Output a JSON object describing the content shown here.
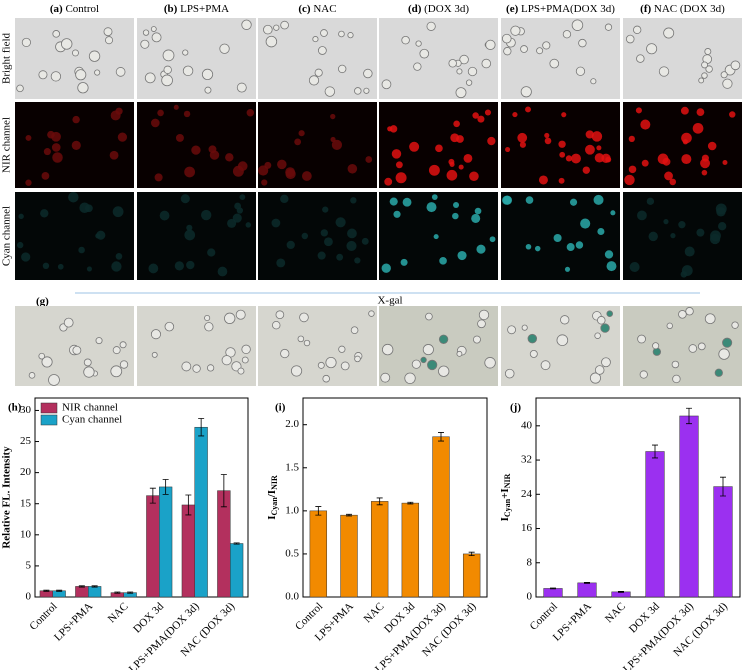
{
  "panels": {
    "columns": [
      {
        "letter": "(a)",
        "name": "Control"
      },
      {
        "letter": "(b)",
        "name": "LPS+PMA"
      },
      {
        "letter": "(c)",
        "name": "NAC"
      },
      {
        "letter": "(d)",
        "name": "(DOX 3d)"
      },
      {
        "letter": "(e)",
        "name": "LPS+PMA(DOX 3d)"
      },
      {
        "letter": "(f)",
        "name": "NAC (DOX 3d)"
      }
    ],
    "rows": [
      "Bright field",
      "NIR channel",
      "Cyan channel"
    ],
    "g_label": "(g)",
    "g_title": "X-gal"
  },
  "chart_data": [
    {
      "type": "grouped_bar",
      "panel_label": "(h)",
      "y_label": "Relative FL. Intensity",
      "categories": [
        "Control",
        "LPS+PMA",
        "NAC",
        "DOX 3d",
        "LPS+PMA(DOX 3d)",
        "NAC (DOX 3d)"
      ],
      "series": [
        {
          "name": "NIR channel",
          "color": "#b3305e",
          "values": [
            1.0,
            1.7,
            0.7,
            16.3,
            14.8,
            17.1
          ],
          "errors": [
            0.1,
            0.1,
            0.1,
            1.2,
            1.6,
            2.6
          ]
        },
        {
          "name": "Cyan channel",
          "color": "#1aa2c8",
          "values": [
            1.0,
            1.7,
            0.7,
            17.7,
            27.3,
            8.6
          ],
          "errors": [
            0.1,
            0.1,
            0.1,
            1.2,
            1.4,
            0.1
          ]
        }
      ],
      "ylim": [
        0,
        32
      ],
      "yticks": [
        0,
        5,
        10,
        15,
        20,
        25,
        30
      ],
      "legend": "upper-left"
    },
    {
      "type": "bar",
      "panel_label": "(i)",
      "y_label": [
        "I",
        "Cyan",
        "/I",
        "NIR"
      ],
      "categories": [
        "Control",
        "LPS+PMA",
        "NAC",
        "DOX 3d",
        "LPS+PMA(DOX 3d)",
        "NAC (DOX 3d)"
      ],
      "color": "#f28a00",
      "values": [
        1.0,
        0.95,
        1.11,
        1.09,
        1.86,
        0.5
      ],
      "errors": [
        0.05,
        0.01,
        0.04,
        0.01,
        0.05,
        0.02
      ],
      "ylim": [
        0,
        2.31
      ],
      "yticks": [
        {
          "value": 0,
          "label": "0.0"
        },
        0.5,
        {
          "value": 1,
          "label": "1.0"
        },
        1.5,
        {
          "value": 2,
          "label": "2.0"
        }
      ]
    },
    {
      "type": "bar",
      "panel_label": "(j)",
      "y_label": [
        "I",
        "Cyan",
        "+I",
        "NIR"
      ],
      "categories": [
        "Control",
        "LPS+PMA",
        "NAC",
        "DOX 3d",
        "LPS+PMA(DOX 3d)",
        "NAC (DOX 3d)"
      ],
      "color": "#9b30f0",
      "values": [
        2.0,
        3.3,
        1.2,
        34.0,
        42.3,
        25.8
      ],
      "errors": [
        0.1,
        0.1,
        0.1,
        1.5,
        1.8,
        2.2
      ],
      "ylim": [
        0,
        46.5
      ],
      "yticks": [
        0,
        8,
        16,
        24,
        32,
        40
      ]
    }
  ]
}
